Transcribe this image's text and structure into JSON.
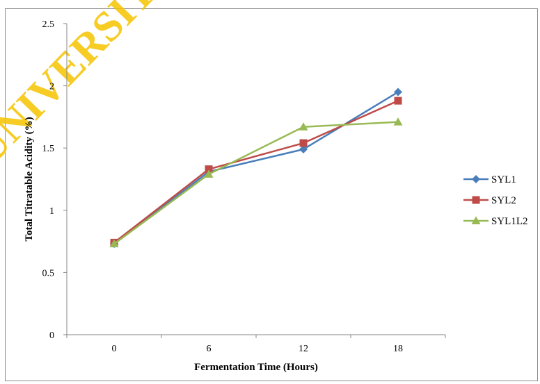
{
  "watermark": {
    "text": "UNIVERSITI",
    "color": "#f5c400"
  },
  "chart_data": {
    "type": "line",
    "title": "",
    "xlabel": "Fermentation Time (Hours)",
    "ylabel": "Total Titratable Acidity (%)",
    "categories": [
      "0",
      "6",
      "12",
      "18"
    ],
    "ylim": [
      0,
      2.5
    ],
    "yticks": [
      "0",
      "0.5",
      "1",
      "1.5",
      "2",
      "2.5"
    ],
    "grid": false,
    "legend_position": "right",
    "series": [
      {
        "name": "SYL1",
        "values": [
          0.73,
          1.31,
          1.49,
          1.95
        ],
        "color": "#4a7ebb",
        "marker": "diamond"
      },
      {
        "name": "SYL2",
        "values": [
          0.74,
          1.33,
          1.54,
          1.88
        ],
        "color": "#be4b48",
        "marker": "square"
      },
      {
        "name": "SYL1L2",
        "values": [
          0.73,
          1.29,
          1.67,
          1.71
        ],
        "color": "#98b954",
        "marker": "triangle"
      }
    ]
  }
}
